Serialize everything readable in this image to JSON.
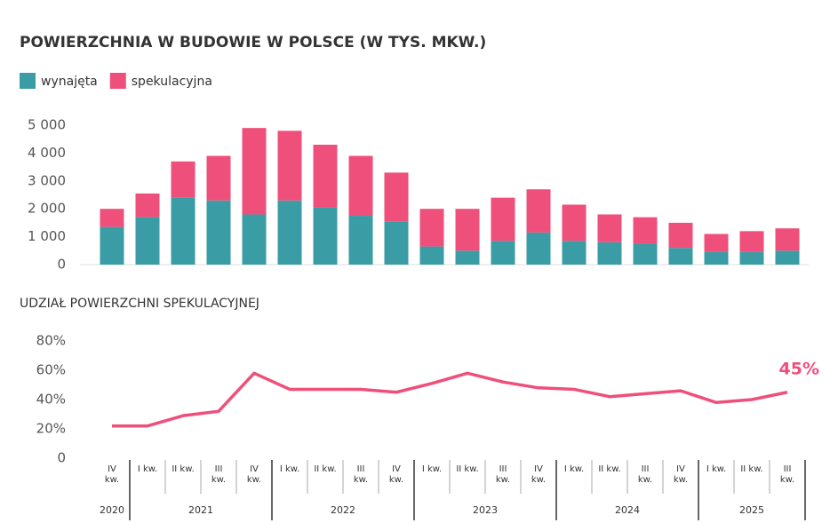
{
  "chart_data": [
    {
      "type": "stacked_bar",
      "title": "POWIERZCHNIA W BUDOWIE W POLSCE (W TYS. MKW.)",
      "series": [
        {
          "name": "wynajęta",
          "color": "#3a9ca5",
          "values": [
            1350,
            1700,
            2400,
            2300,
            1800,
            2300,
            2050,
            1750,
            1550,
            650,
            500,
            850,
            1150,
            850,
            800,
            750,
            600,
            450,
            450,
            500
          ]
        },
        {
          "name": "spekulacyjna",
          "color": "#ef4f7b",
          "values": [
            650,
            850,
            1300,
            1600,
            3100,
            2500,
            2250,
            2150,
            1750,
            1350,
            1500,
            1550,
            1550,
            1300,
            1000,
            950,
            900,
            650,
            750,
            800
          ]
        }
      ],
      "ylim": [
        0,
        5000
      ],
      "yticks": [
        0,
        {
          "value": 1000,
          "label": "1 000"
        },
        {
          "value": 2000,
          "label": "2 000"
        },
        {
          "value": 3000,
          "label": "3 000"
        },
        {
          "value": 4000,
          "label": "4 000"
        },
        {
          "value": 5000,
          "label": "5 000"
        }
      ],
      "legend": "top-left"
    },
    {
      "type": "line",
      "title": "UDZIAŁ POWIERZCHNI SPEKULACYJNEJ",
      "categories": [
        "IV kw.",
        "I kw.",
        "II kw.",
        "III kw.",
        "IV kw.",
        "I kw.",
        "II kw.",
        "III kw.",
        "IV kw.",
        "I kw.",
        "II kw.",
        "III kw.",
        "IV kw.",
        "I kw.",
        "II kw.",
        "III kw.",
        "IV kw.",
        "I kw.",
        "II kw.",
        "III kw."
      ],
      "years": [
        "2020",
        "2021",
        "2022",
        "2023",
        "2024",
        "2025"
      ],
      "series": [
        {
          "color": "#ef4f7b",
          "values": [
            22,
            22,
            29,
            32,
            58,
            47,
            47,
            47,
            45,
            51,
            58,
            52,
            48,
            47,
            42,
            44,
            46,
            38,
            40,
            45
          ],
          "value_labels": [
            null,
            null,
            null,
            null,
            null,
            null,
            null,
            null,
            null,
            null,
            null,
            null,
            null,
            null,
            null,
            null,
            null,
            null,
            null,
            "45%"
          ]
        }
      ],
      "ylim": [
        0,
        80
      ],
      "yticks": [
        0,
        {
          "value": 20,
          "label": "20%"
        },
        {
          "value": 40,
          "label": "40%"
        },
        {
          "value": 60,
          "label": "60%"
        },
        {
          "value": 80,
          "label": "80%"
        }
      ]
    }
  ]
}
